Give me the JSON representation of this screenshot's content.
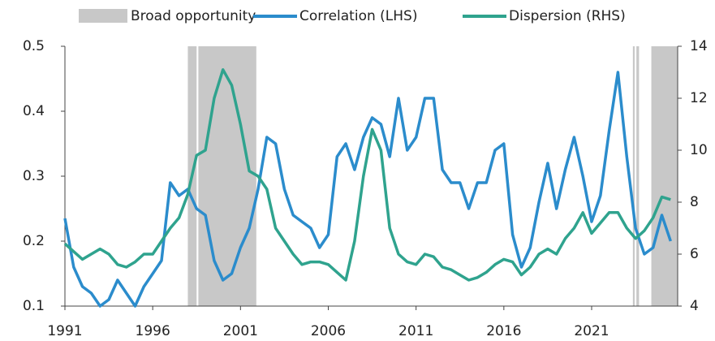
{
  "chart_data": {
    "type": "line",
    "x": [
      1991,
      1991.5,
      1992,
      1992.5,
      1993,
      1993.5,
      1994,
      1994.5,
      1995,
      1995.5,
      1996,
      1996.5,
      1997,
      1997.5,
      1998,
      1998.5,
      1999,
      1999.5,
      2000,
      2000.5,
      2001,
      2001.5,
      2002,
      2002.5,
      2003,
      2003.5,
      2004,
      2004.5,
      2005,
      2005.5,
      2006,
      2006.5,
      2007,
      2007.5,
      2008,
      2008.5,
      2009,
      2009.5,
      2010,
      2010.5,
      2011,
      2011.5,
      2012,
      2012.5,
      2013,
      2013.5,
      2014,
      2014.5,
      2015,
      2015.5,
      2016,
      2016.5,
      2017,
      2017.5,
      2018,
      2018.5,
      2019,
      2019.5,
      2020,
      2020.5,
      2021,
      2021.5,
      2022,
      2022.5,
      2023,
      2023.5,
      2024,
      2024.5,
      2025,
      2025.5
    ],
    "xlim": [
      1991,
      2025.9
    ],
    "xticks": [
      1991,
      1996,
      2001,
      2006,
      2011,
      2016,
      2021
    ],
    "ylim": [
      0.1,
      0.5
    ],
    "yticks": [
      0.1,
      0.2,
      0.3,
      0.4,
      0.5
    ],
    "y2lim": [
      4,
      14
    ],
    "y2ticks": [
      4,
      6,
      8,
      10,
      12,
      14
    ],
    "shading": {
      "name": "Broad opportunity",
      "color": "#c8c8c8",
      "ranges": [
        [
          1998.0,
          1998.5
        ],
        [
          1998.6,
          2001.9
        ],
        [
          2023.35,
          2023.45
        ],
        [
          2023.55,
          2023.7
        ],
        [
          2024.4,
          2025.9
        ]
      ]
    },
    "series": [
      {
        "name": "Correlation (LHS)",
        "color": "#2b8ccc",
        "axis": "y",
        "values": [
          0.235,
          0.16,
          0.13,
          0.12,
          0.1,
          0.11,
          0.14,
          0.12,
          0.1,
          0.13,
          0.15,
          0.17,
          0.29,
          0.27,
          0.28,
          0.25,
          0.24,
          0.17,
          0.14,
          0.15,
          0.19,
          0.22,
          0.28,
          0.36,
          0.35,
          0.28,
          0.24,
          0.23,
          0.22,
          0.19,
          0.21,
          0.33,
          0.35,
          0.31,
          0.36,
          0.39,
          0.38,
          0.33,
          0.42,
          0.34,
          0.36,
          0.42,
          0.42,
          0.31,
          0.29,
          0.29,
          0.25,
          0.29,
          0.29,
          0.34,
          0.35,
          0.21,
          0.16,
          0.19,
          0.26,
          0.32,
          0.25,
          0.31,
          0.36,
          0.3,
          0.23,
          0.27,
          0.37,
          0.46,
          0.33,
          0.22,
          0.18,
          0.19,
          0.24,
          0.2
        ]
      },
      {
        "name": "Dispersion (RHS)",
        "color": "#2fa38e",
        "axis": "y2",
        "values": [
          6.4,
          6.1,
          5.8,
          6.0,
          6.2,
          6.0,
          5.6,
          5.5,
          5.7,
          6.0,
          6.0,
          6.5,
          7.0,
          7.4,
          8.3,
          9.8,
          10.0,
          12.0,
          13.1,
          12.5,
          11.0,
          9.2,
          9.0,
          8.5,
          7.0,
          6.5,
          6.0,
          5.6,
          5.7,
          5.7,
          5.6,
          5.3,
          5.0,
          6.5,
          9.0,
          10.8,
          10.0,
          7.0,
          6.0,
          5.7,
          5.6,
          6.0,
          5.9,
          5.5,
          5.4,
          5.2,
          5.0,
          5.1,
          5.3,
          5.6,
          5.8,
          5.7,
          5.2,
          5.5,
          6.0,
          6.2,
          6.0,
          6.6,
          7.0,
          7.6,
          6.8,
          7.2,
          7.6,
          7.6,
          7.0,
          6.6,
          6.9,
          7.4,
          8.2,
          8.1
        ]
      }
    ]
  }
}
